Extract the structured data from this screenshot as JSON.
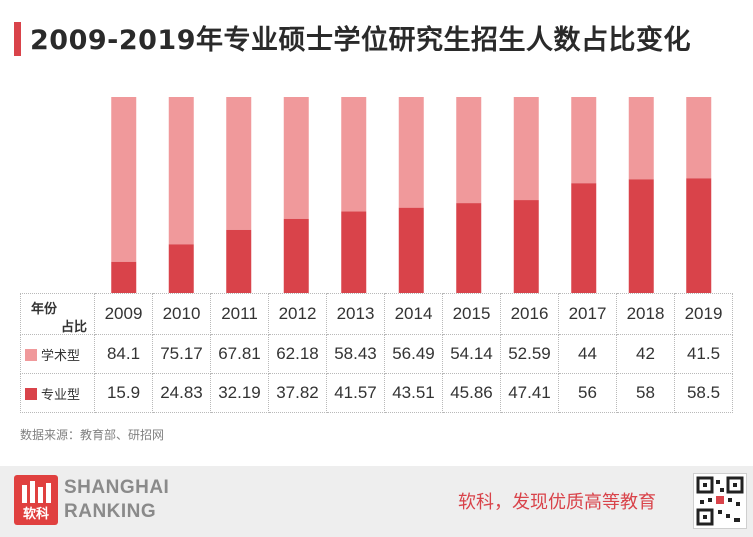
{
  "title": "2009-2019年专业硕士学位研究生招生人数占比变化",
  "colors": {
    "academic": "#f0999b",
    "professional": "#d9434a",
    "accent": "#d9434a"
  },
  "chart_data": {
    "type": "bar",
    "stacked": true,
    "categories": [
      "2009",
      "2010",
      "2011",
      "2012",
      "2013",
      "2014",
      "2015",
      "2016",
      "2017",
      "2018",
      "2019"
    ],
    "series": [
      {
        "name": "学术型",
        "values": [
          84.1,
          75.17,
          67.81,
          62.18,
          58.43,
          56.49,
          54.14,
          52.59,
          44,
          42,
          41.5
        ]
      },
      {
        "name": "专业型",
        "values": [
          15.9,
          24.83,
          32.19,
          37.82,
          41.57,
          43.51,
          45.86,
          47.41,
          56,
          58,
          58.5
        ]
      }
    ],
    "ylim": [
      0,
      100
    ]
  },
  "table": {
    "header_label_top": "年份",
    "header_label_bottom": "占比",
    "years": [
      "2009",
      "2010",
      "2011",
      "2012",
      "2013",
      "2014",
      "2015",
      "2016",
      "2017",
      "2018",
      "2019"
    ],
    "rows": [
      {
        "label": "学术型",
        "values": [
          "84.1",
          "75.17",
          "67.81",
          "62.18",
          "58.43",
          "56.49",
          "54.14",
          "52.59",
          "44",
          "42",
          "41.5"
        ]
      },
      {
        "label": "专业型",
        "values": [
          "15.9",
          "24.83",
          "32.19",
          "37.82",
          "41.57",
          "43.51",
          "45.86",
          "47.41",
          "56",
          "58",
          "58.5"
        ]
      }
    ]
  },
  "source": "数据来源：教育部、研招网",
  "footer": {
    "logo_glyph": "软科",
    "brand_line1": "SHANGHAI",
    "brand_line2": "RANKING",
    "slogan": "软科，发现优质高等教育",
    "qr_icon": "qr-code-icon"
  }
}
